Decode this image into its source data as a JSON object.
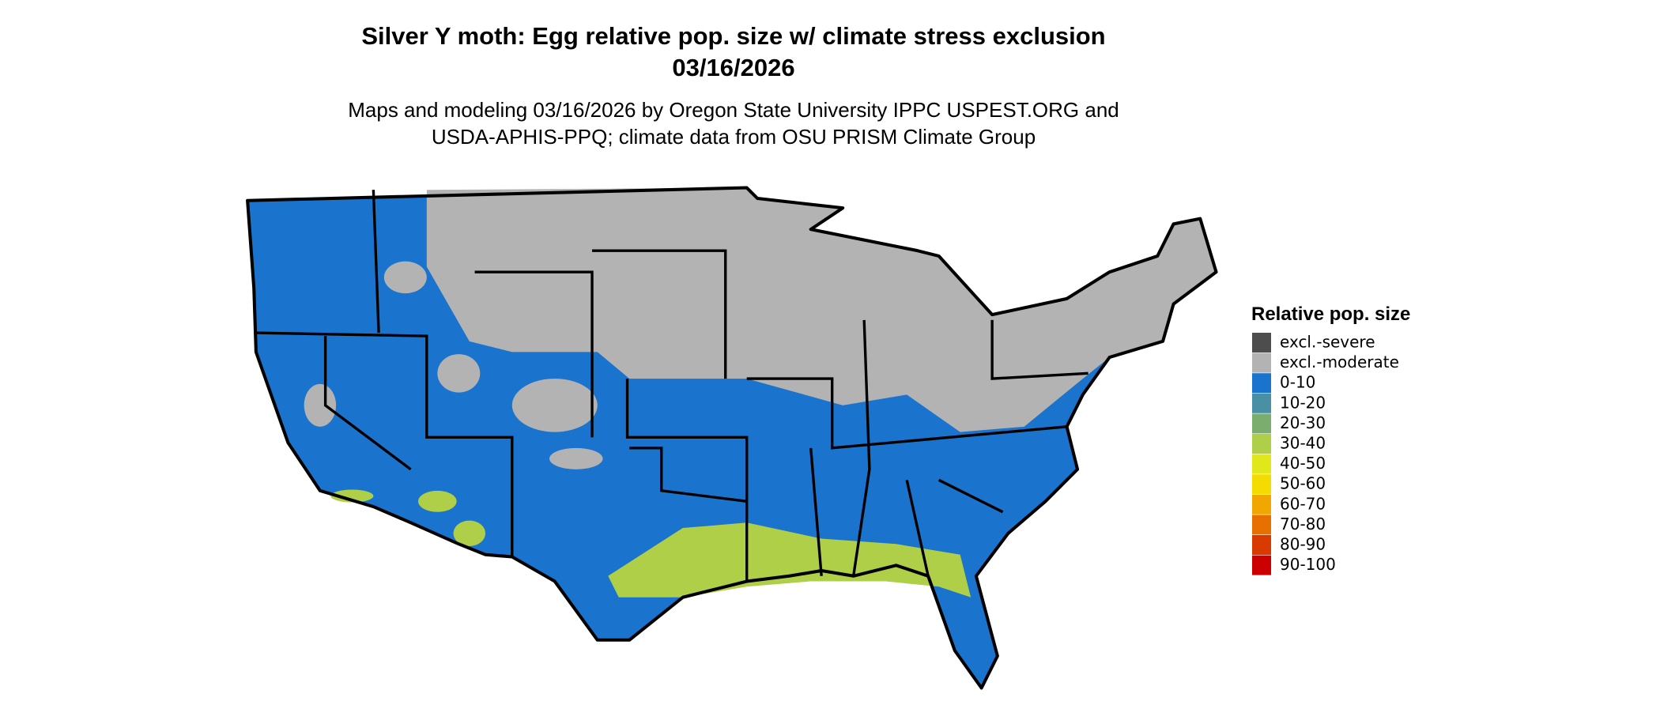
{
  "header": {
    "title": "Silver Y moth: Egg relative pop. size w/ climate stress exclusion",
    "date": "03/16/2026",
    "subtitle_lines": [
      "Maps and modeling 03/16/2026 by Oregon State University IPPC USPEST.ORG and",
      "USDA-APHIS-PPQ; climate data from OSU PRISM Climate Group"
    ]
  },
  "legend": {
    "title": "Relative pop. size",
    "items": [
      {
        "label": "excl.-severe",
        "color": "#4d4d4d"
      },
      {
        "label": "excl.-moderate",
        "color": "#b3b3b3"
      },
      {
        "label": "0-10",
        "color": "#1a73cc"
      },
      {
        "label": "10-20",
        "color": "#4a90a4"
      },
      {
        "label": "20-30",
        "color": "#7aad6e"
      },
      {
        "label": "30-40",
        "color": "#b0cf48"
      },
      {
        "label": "40-50",
        "color": "#e0e81a"
      },
      {
        "label": "50-60",
        "color": "#f5dc00"
      },
      {
        "label": "60-70",
        "color": "#f0a800"
      },
      {
        "label": "70-80",
        "color": "#e87000"
      },
      {
        "label": "80-90",
        "color": "#d93a00"
      },
      {
        "label": "90-100",
        "color": "#cc0000"
      }
    ]
  }
}
